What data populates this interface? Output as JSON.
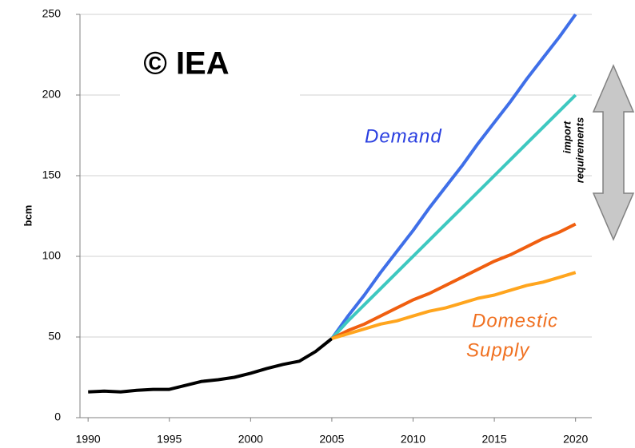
{
  "chart_data": {
    "type": "line",
    "y_label": "bcm",
    "annotations": {
      "watermark": "© IEA",
      "demand": "Demand",
      "supply": [
        "Domestic",
        "Supply"
      ],
      "imports": [
        "import",
        "requirements"
      ]
    },
    "x": [
      1990,
      1991,
      1992,
      1993,
      1994,
      1995,
      1996,
      1997,
      1998,
      1999,
      2000,
      2001,
      2002,
      2003,
      2004,
      2005,
      2006,
      2007,
      2008,
      2009,
      2010,
      2011,
      2012,
      2013,
      2014,
      2015,
      2016,
      2017,
      2018,
      2019,
      2020
    ],
    "series": [
      {
        "color": "#000000",
        "values": [
          16,
          16.5,
          16,
          17,
          17.5,
          17.5,
          20,
          22.5,
          23.5,
          25,
          27.5,
          30.5,
          33,
          35,
          41,
          49,
          null,
          null,
          null,
          null,
          null,
          null,
          null,
          null,
          null,
          null,
          null,
          null,
          null,
          null,
          null
        ]
      },
      {
        "color": "#3f6fe8",
        "values": [
          null,
          null,
          null,
          null,
          null,
          null,
          null,
          null,
          null,
          null,
          null,
          null,
          null,
          null,
          null,
          49,
          63,
          76,
          90,
          103,
          116,
          130,
          143,
          156,
          170,
          183,
          196,
          210,
          223,
          236,
          250
        ]
      },
      {
        "color": "#3ec8c0",
        "values": [
          null,
          null,
          null,
          null,
          null,
          null,
          null,
          null,
          null,
          null,
          null,
          null,
          null,
          null,
          null,
          49,
          60,
          70,
          80,
          90,
          100,
          110,
          120,
          130,
          140,
          150,
          160,
          170,
          180,
          190,
          200
        ]
      },
      {
        "color": "#f05f10",
        "values": [
          null,
          null,
          null,
          null,
          null,
          null,
          null,
          null,
          null,
          null,
          null,
          null,
          null,
          null,
          null,
          49,
          54,
          58,
          63,
          68,
          73,
          77,
          82,
          87,
          92,
          97,
          101,
          106,
          111,
          115,
          120
        ]
      },
      {
        "color": "#ffa51e",
        "values": [
          null,
          null,
          null,
          null,
          null,
          null,
          null,
          null,
          null,
          null,
          null,
          null,
          null,
          null,
          null,
          49,
          52,
          55,
          58,
          60,
          63,
          66,
          68,
          71,
          74,
          76,
          79,
          82,
          84,
          87,
          90
        ]
      }
    ],
    "xlim": [
      1989.5,
      2021
    ],
    "xticks": [
      1990,
      1995,
      2000,
      2005,
      2010,
      2015,
      2020
    ],
    "ylim": [
      0,
      250
    ],
    "yticks": [
      0,
      50,
      100,
      150,
      200,
      250
    ],
    "grid": true
  }
}
